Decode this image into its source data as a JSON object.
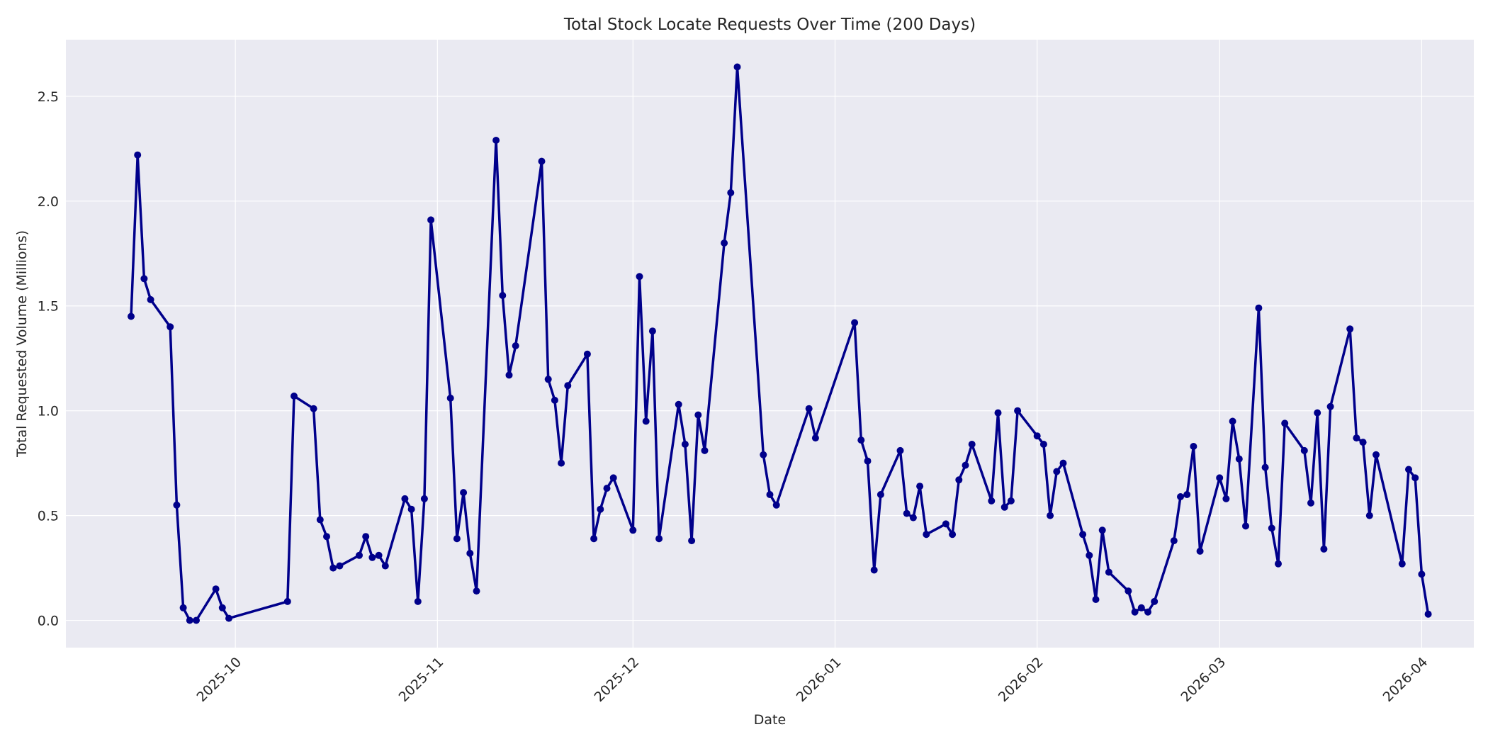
{
  "chart_data": {
    "type": "line",
    "title": "Total Stock Locate Requests Over Time (200 Days)",
    "xlabel": "Date",
    "ylabel": "Total Requested Volume (Millions)",
    "xlim": [
      "2025-09-05",
      "2026-04-09"
    ],
    "ylim": [
      -0.13,
      2.77
    ],
    "x_ticks": [
      "2025-10-01",
      "2025-11-01",
      "2025-12-01",
      "2026-01-01",
      "2026-02-01",
      "2026-03-01",
      "2026-04-01"
    ],
    "x_tick_labels": [
      "2025-10",
      "2025-11",
      "2025-12",
      "2026-01",
      "2026-02",
      "2026-03",
      "2026-04"
    ],
    "y_ticks": [
      0.0,
      0.5,
      1.0,
      1.5,
      2.0,
      2.5
    ],
    "y_tick_labels": [
      "0.0",
      "0.5",
      "1.0",
      "1.5",
      "2.0",
      "2.5"
    ],
    "grid": true,
    "colors": {
      "line": "#00008b",
      "plot_bg": "#eaeaf2",
      "grid": "#ffffff"
    },
    "series": [
      {
        "x": [
          "2025-09-15",
          "2025-09-16",
          "2025-09-17",
          "2025-09-18",
          "2025-09-21",
          "2025-09-22",
          "2025-09-23",
          "2025-09-24",
          "2025-09-25",
          "2025-09-28",
          "2025-09-29",
          "2025-09-30",
          "2025-10-09",
          "2025-10-10",
          "2025-10-13",
          "2025-10-14",
          "2025-10-15",
          "2025-10-16",
          "2025-10-17",
          "2025-10-20",
          "2025-10-21",
          "2025-10-22",
          "2025-10-23",
          "2025-10-24",
          "2025-10-27",
          "2025-10-28",
          "2025-10-29",
          "2025-10-30",
          "2025-10-31",
          "2025-11-03",
          "2025-11-04",
          "2025-11-05",
          "2025-11-06",
          "2025-11-07",
          "2025-11-10",
          "2025-11-11",
          "2025-11-12",
          "2025-11-13",
          "2025-11-17",
          "2025-11-18",
          "2025-11-19",
          "2025-11-20",
          "2025-11-21",
          "2025-11-24",
          "2025-11-25",
          "2025-11-26",
          "2025-11-27",
          "2025-11-28",
          "2025-12-01",
          "2025-12-02",
          "2025-12-03",
          "2025-12-04",
          "2025-12-05",
          "2025-12-08",
          "2025-12-09",
          "2025-12-10",
          "2025-12-11",
          "2025-12-12",
          "2025-12-15",
          "2025-12-16",
          "2025-12-17",
          "2025-12-21",
          "2025-12-22",
          "2025-12-23",
          "2025-12-28",
          "2025-12-29",
          "2026-01-04",
          "2026-01-05",
          "2026-01-06",
          "2026-01-07",
          "2026-01-08",
          "2026-01-11",
          "2026-01-12",
          "2026-01-13",
          "2026-01-14",
          "2026-01-15",
          "2026-01-18",
          "2026-01-19",
          "2026-01-20",
          "2026-01-21",
          "2026-01-22",
          "2026-01-25",
          "2026-01-26",
          "2026-01-27",
          "2026-01-28",
          "2026-01-29",
          "2026-02-01",
          "2026-02-02",
          "2026-02-03",
          "2026-02-04",
          "2026-02-05",
          "2026-02-08",
          "2026-02-09",
          "2026-02-10",
          "2026-02-11",
          "2026-02-12",
          "2026-02-15",
          "2026-02-16",
          "2026-02-17",
          "2026-02-18",
          "2026-02-19",
          "2026-02-22",
          "2026-02-23",
          "2026-02-24",
          "2026-02-25",
          "2026-02-26",
          "2026-03-01",
          "2026-03-02",
          "2026-03-03",
          "2026-03-04",
          "2026-03-05",
          "2026-03-07",
          "2026-03-08",
          "2026-03-09",
          "2026-03-10",
          "2026-03-11",
          "2026-03-14",
          "2026-03-15",
          "2026-03-16",
          "2026-03-17",
          "2026-03-18",
          "2026-03-21",
          "2026-03-22",
          "2026-03-23",
          "2026-03-24",
          "2026-03-25",
          "2026-03-29",
          "2026-03-30",
          "2026-03-31",
          "2026-04-01",
          "2026-04-02"
        ],
        "y": [
          1.45,
          2.22,
          1.63,
          1.53,
          1.4,
          0.55,
          0.06,
          0.0,
          0.0,
          0.15,
          0.06,
          0.01,
          0.09,
          1.07,
          1.01,
          0.48,
          0.4,
          0.25,
          0.26,
          0.31,
          0.4,
          0.3,
          0.31,
          0.26,
          0.58,
          0.53,
          0.09,
          0.58,
          1.91,
          1.06,
          0.39,
          0.61,
          0.32,
          0.14,
          2.29,
          1.55,
          1.17,
          1.31,
          2.19,
          1.15,
          1.05,
          0.75,
          1.12,
          1.27,
          0.39,
          0.53,
          0.63,
          0.68,
          0.43,
          1.64,
          0.95,
          1.38,
          0.39,
          1.03,
          0.84,
          0.38,
          0.98,
          0.81,
          1.8,
          2.04,
          2.64,
          0.79,
          0.6,
          0.55,
          1.01,
          0.87,
          1.42,
          0.86,
          0.76,
          0.24,
          0.6,
          0.81,
          0.51,
          0.49,
          0.64,
          0.41,
          0.46,
          0.41,
          0.67,
          0.74,
          0.84,
          0.57,
          0.99,
          0.54,
          0.57,
          1.0,
          0.88,
          0.84,
          0.5,
          0.71,
          0.75,
          0.41,
          0.31,
          0.1,
          0.43,
          0.23,
          0.14,
          0.04,
          0.06,
          0.04,
          0.09,
          0.38,
          0.59,
          0.6,
          0.83,
          0.33,
          0.68,
          0.58,
          0.95,
          0.77,
          0.45,
          1.49,
          0.73,
          0.44,
          0.27,
          0.94,
          0.81,
          0.56,
          0.99,
          0.34,
          1.02,
          1.39,
          0.87,
          0.85,
          0.5,
          0.79,
          0.27,
          0.72,
          0.68,
          0.22,
          0.03
        ]
      }
    ]
  }
}
